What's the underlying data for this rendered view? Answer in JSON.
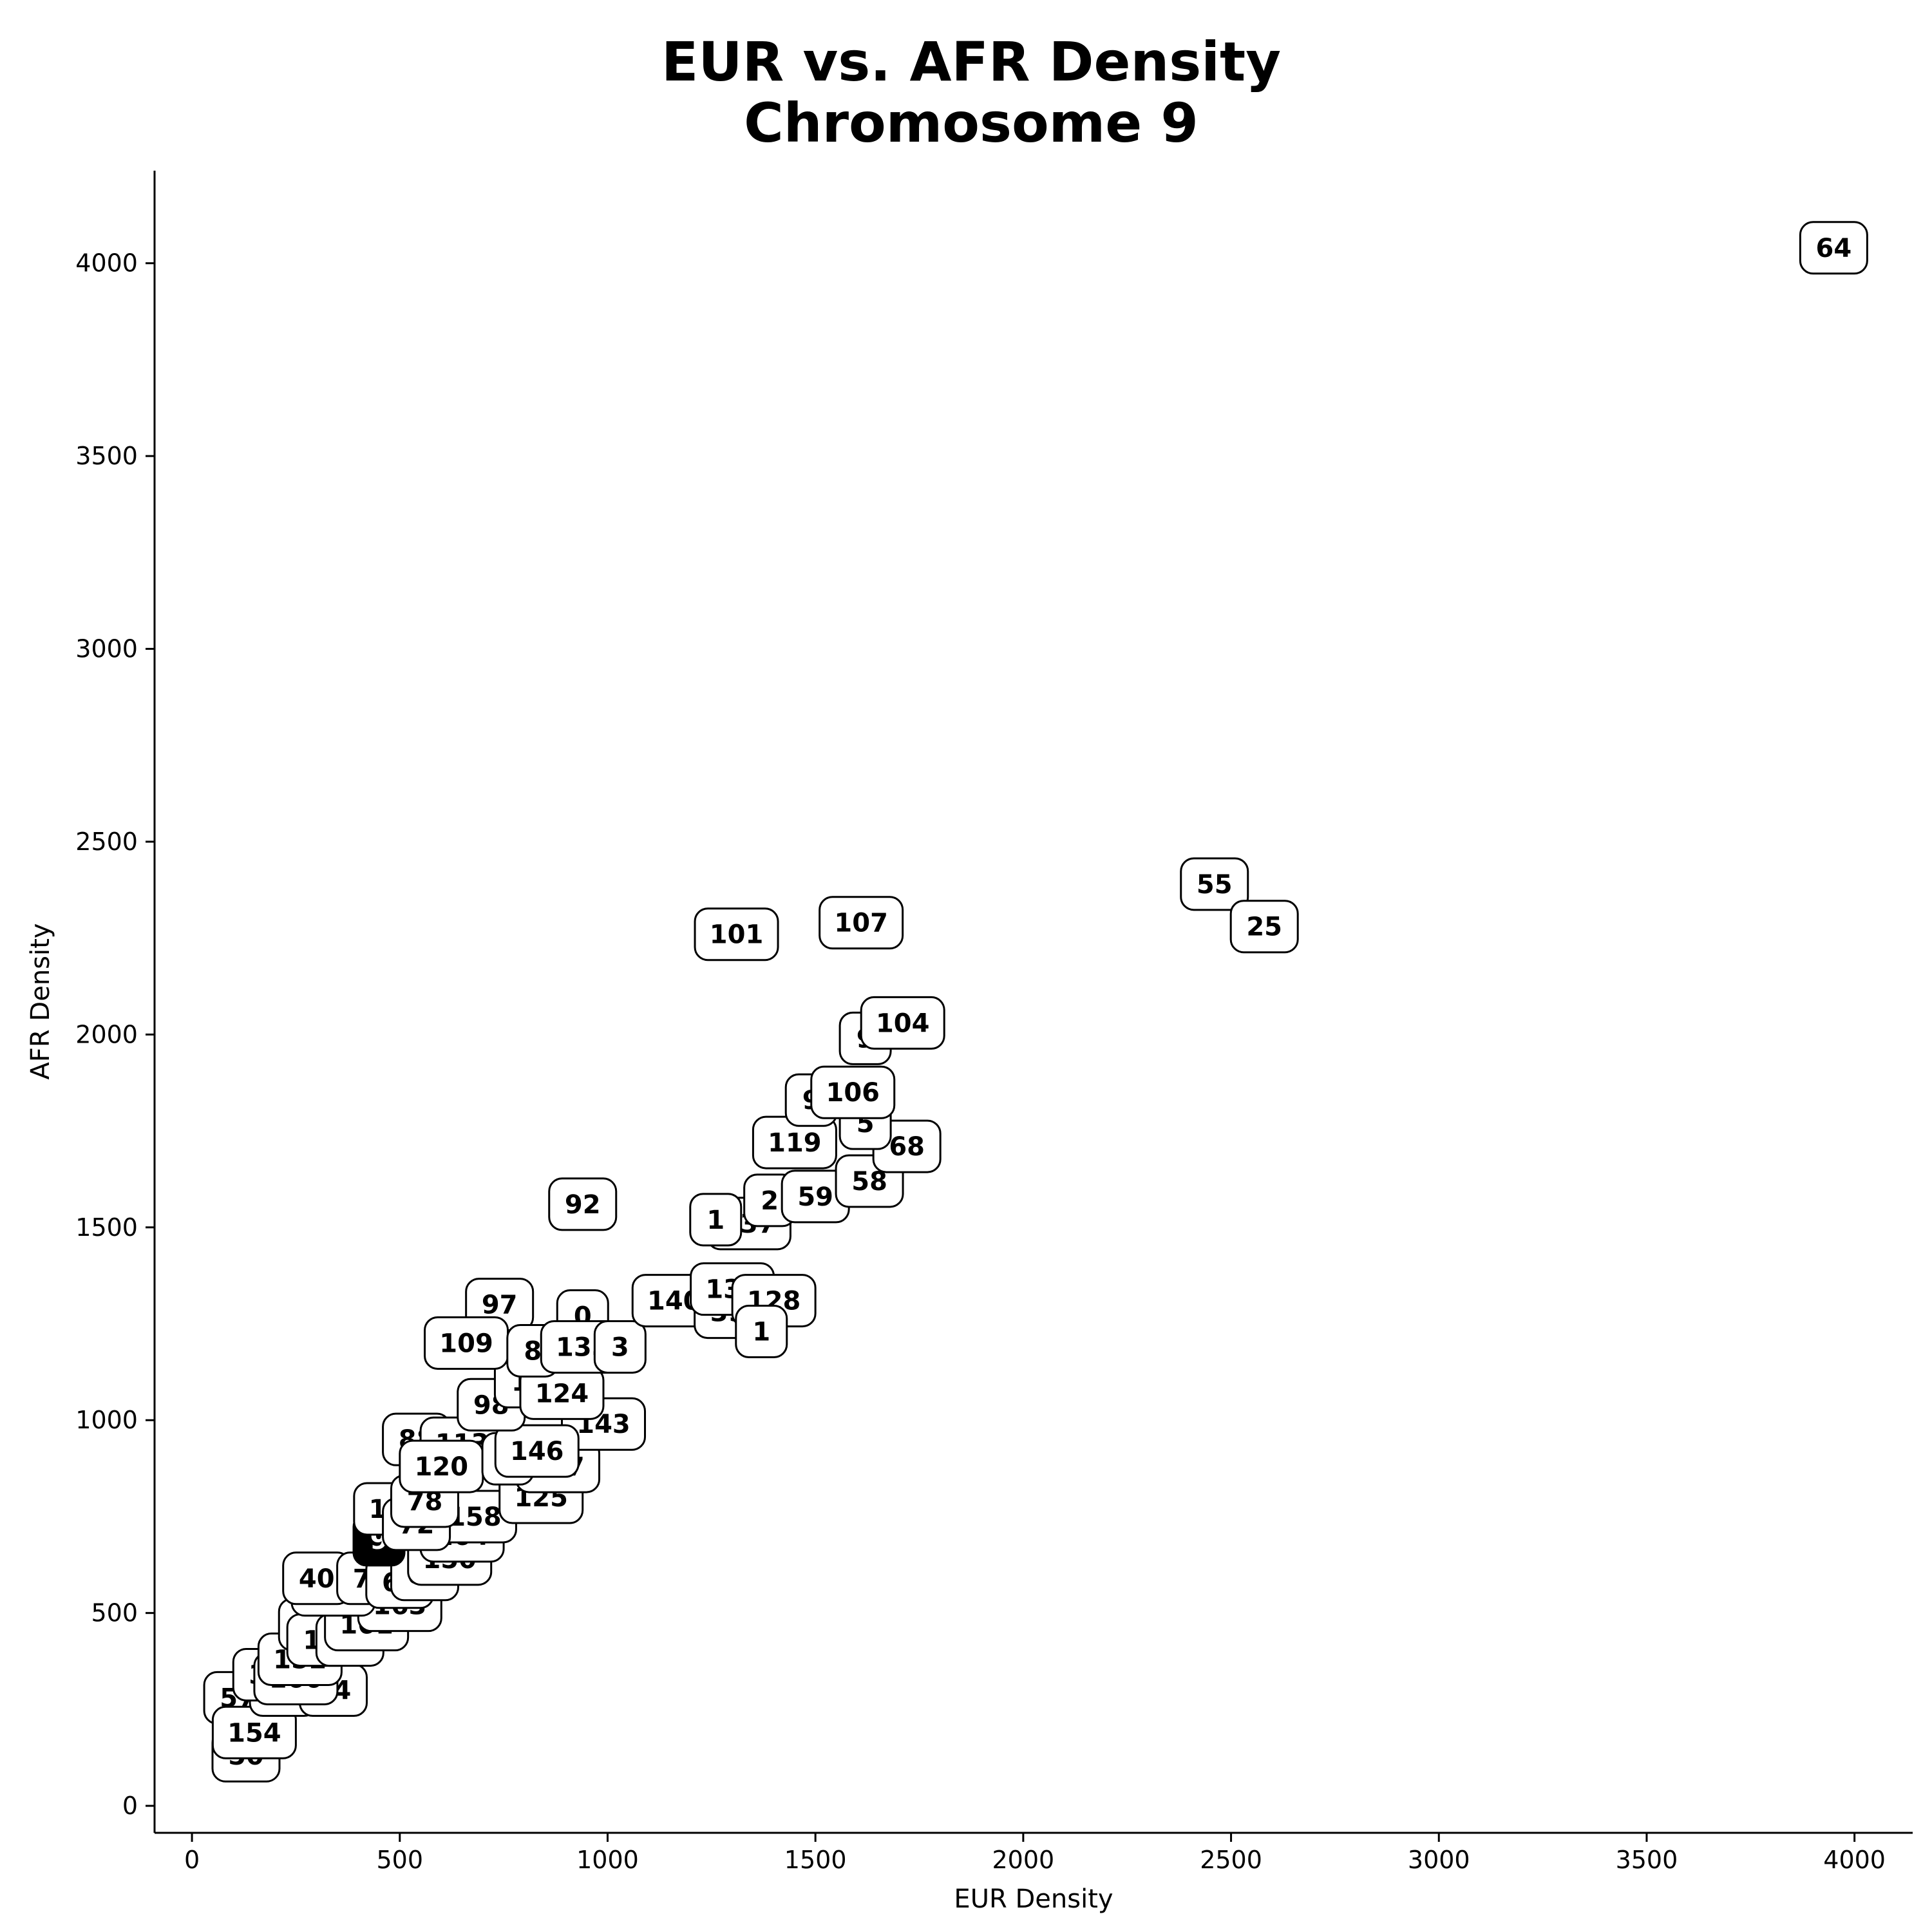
{
  "chart_data": {
    "type": "scatter",
    "title": [
      "EUR vs. AFR Density",
      "Chromosome 9"
    ],
    "xlabel": "EUR Density",
    "ylabel": "AFR Density",
    "xlim": [
      -90,
      4140
    ],
    "ylim": [
      -70,
      4240
    ],
    "xticks": [
      0,
      500,
      1000,
      1500,
      2000,
      2500,
      3000,
      3500,
      4000
    ],
    "yticks": [
      0,
      500,
      1000,
      1500,
      2000,
      2500,
      3000,
      3500,
      4000
    ],
    "highlight_color": "#000000",
    "point_color": "#ffffff",
    "points": [
      {
        "label": "50",
        "x": 130,
        "y": 130
      },
      {
        "label": "57",
        "x": 110,
        "y": 280
      },
      {
        "label": "154",
        "x": 150,
        "y": 190
      },
      {
        "label": "30",
        "x": 220,
        "y": 300
      },
      {
        "label": "74",
        "x": 340,
        "y": 300
      },
      {
        "label": "38",
        "x": 180,
        "y": 340
      },
      {
        "label": "160",
        "x": 250,
        "y": 330
      },
      {
        "label": "152",
        "x": 260,
        "y": 380
      },
      {
        "label": "45",
        "x": 290,
        "y": 470
      },
      {
        "label": "15",
        "x": 310,
        "y": 430
      },
      {
        "label": "12",
        "x": 380,
        "y": 430
      },
      {
        "label": "161",
        "x": 420,
        "y": 470
      },
      {
        "label": "163",
        "x": 500,
        "y": 520
      },
      {
        "label": "166",
        "x": 340,
        "y": 560
      },
      {
        "label": "40",
        "x": 300,
        "y": 590
      },
      {
        "label": "70",
        "x": 430,
        "y": 590
      },
      {
        "label": "61",
        "x": 500,
        "y": 580
      },
      {
        "label": "66",
        "x": 560,
        "y": 600
      },
      {
        "label": "9",
        "x": 450,
        "y": 690,
        "highlight": true
      },
      {
        "label": "150",
        "x": 620,
        "y": 640
      },
      {
        "label": "164",
        "x": 650,
        "y": 700
      },
      {
        "label": "136",
        "x": 490,
        "y": 770
      },
      {
        "label": "158",
        "x": 680,
        "y": 750
      },
      {
        "label": "72",
        "x": 540,
        "y": 730
      },
      {
        "label": "78",
        "x": 560,
        "y": 790
      },
      {
        "label": "125",
        "x": 840,
        "y": 800
      },
      {
        "label": "147",
        "x": 880,
        "y": 880
      },
      {
        "label": "88",
        "x": 540,
        "y": 950
      },
      {
        "label": "113",
        "x": 650,
        "y": 940
      },
      {
        "label": "120",
        "x": 600,
        "y": 880
      },
      {
        "label": "1",
        "x": 760,
        "y": 900
      },
      {
        "label": "143",
        "x": 990,
        "y": 990
      },
      {
        "label": "146",
        "x": 830,
        "y": 920
      },
      {
        "label": "98",
        "x": 720,
        "y": 1040
      },
      {
        "label": "1b",
        "x": 790,
        "y": 1100
      },
      {
        "label": "124",
        "x": 890,
        "y": 1070
      },
      {
        "label": "97",
        "x": 740,
        "y": 1300
      },
      {
        "label": "109",
        "x": 660,
        "y": 1200
      },
      {
        "label": "8",
        "x": 820,
        "y": 1180
      },
      {
        "label": "0",
        "x": 940,
        "y": 1270
      },
      {
        "label": "135",
        "x": 940,
        "y": 1190
      },
      {
        "label": "3",
        "x": 1030,
        "y": 1190
      },
      {
        "label": "140",
        "x": 1160,
        "y": 1310
      },
      {
        "label": "39",
        "x": 1290,
        "y": 1280
      },
      {
        "label": "132",
        "x": 1300,
        "y": 1340
      },
      {
        "label": "128",
        "x": 1400,
        "y": 1310
      },
      {
        "label": "1c",
        "x": 1370,
        "y": 1230
      },
      {
        "label": "92",
        "x": 940,
        "y": 1560
      },
      {
        "label": "137",
        "x": 1340,
        "y": 1510
      },
      {
        "label": "1d",
        "x": 1260,
        "y": 1520
      },
      {
        "label": "2",
        "x": 1390,
        "y": 1570
      },
      {
        "label": "59",
        "x": 1500,
        "y": 1580
      },
      {
        "label": "58",
        "x": 1630,
        "y": 1620
      },
      {
        "label": "119",
        "x": 1450,
        "y": 1720
      },
      {
        "label": "68",
        "x": 1720,
        "y": 1710
      },
      {
        "label": "5",
        "x": 1620,
        "y": 1770
      },
      {
        "label": "9b",
        "x": 1490,
        "y": 1830
      },
      {
        "label": "106",
        "x": 1590,
        "y": 1850
      },
      {
        "label": "9c",
        "x": 1620,
        "y": 1990
      },
      {
        "label": "104",
        "x": 1710,
        "y": 2030
      },
      {
        "label": "101",
        "x": 1310,
        "y": 2260
      },
      {
        "label": "107",
        "x": 1610,
        "y": 2290
      },
      {
        "label": "55",
        "x": 2460,
        "y": 2390
      },
      {
        "label": "25",
        "x": 2580,
        "y": 2280
      },
      {
        "label": "64",
        "x": 3950,
        "y": 4040
      }
    ]
  }
}
